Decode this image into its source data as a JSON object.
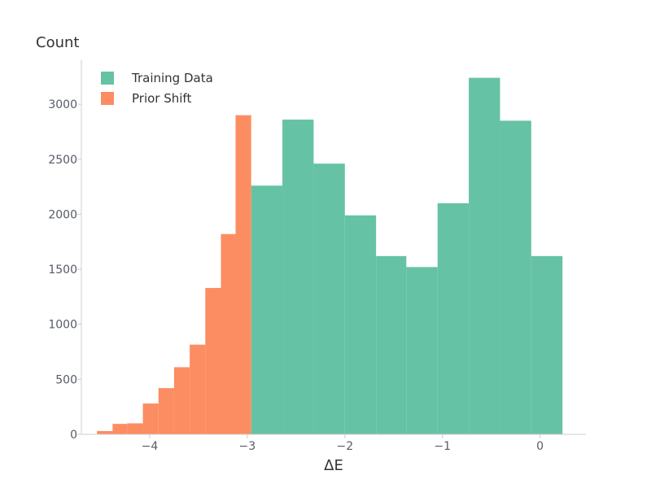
{
  "chart_data": {
    "type": "bar",
    "xlabel": "ΔE",
    "ylabel": "Count",
    "xlim": [
      -4.7,
      0.47
    ],
    "ylim": [
      0,
      3400
    ],
    "x_ticks": [
      -4,
      -3,
      -2,
      -1,
      0
    ],
    "x_tick_labels": [
      "−4",
      "−3",
      "−2",
      "−1",
      "0"
    ],
    "y_ticks": [
      0,
      500,
      1000,
      1500,
      2000,
      2500,
      3000
    ],
    "y_tick_labels": [
      "0",
      "500",
      "1000",
      "1500",
      "2000",
      "2500",
      "3000"
    ],
    "grid": false,
    "legend": {
      "position": "top-left"
    },
    "series": [
      {
        "name": "Training Data",
        "color": "#66c2a5",
        "bins": [
          {
            "x0": -2.96,
            "x1": -2.64,
            "value": 2260
          },
          {
            "x0": -2.64,
            "x1": -2.32,
            "value": 2860
          },
          {
            "x0": -2.32,
            "x1": -2.0,
            "value": 2460
          },
          {
            "x0": -2.0,
            "x1": -1.68,
            "value": 1990
          },
          {
            "x0": -1.68,
            "x1": -1.37,
            "value": 1620
          },
          {
            "x0": -1.37,
            "x1": -1.05,
            "value": 1520
          },
          {
            "x0": -1.05,
            "x1": -0.73,
            "value": 2100
          },
          {
            "x0": -0.73,
            "x1": -0.41,
            "value": 3240
          },
          {
            "x0": -0.41,
            "x1": -0.09,
            "value": 2850
          },
          {
            "x0": -0.09,
            "x1": 0.23,
            "value": 1620
          }
        ]
      },
      {
        "name": "Prior Shift",
        "color": "#fc8d62",
        "bins": [
          {
            "x0": -4.54,
            "x1": -4.38,
            "value": 30
          },
          {
            "x0": -4.38,
            "x1": -4.23,
            "value": 95
          },
          {
            "x0": -4.23,
            "x1": -4.07,
            "value": 100
          },
          {
            "x0": -4.07,
            "x1": -3.91,
            "value": 280
          },
          {
            "x0": -3.91,
            "x1": -3.75,
            "value": 420
          },
          {
            "x0": -3.75,
            "x1": -3.59,
            "value": 610
          },
          {
            "x0": -3.59,
            "x1": -3.43,
            "value": 815
          },
          {
            "x0": -3.43,
            "x1": -3.27,
            "value": 1330
          },
          {
            "x0": -3.27,
            "x1": -3.12,
            "value": 1820
          },
          {
            "x0": -3.12,
            "x1": -2.96,
            "value": 2900
          }
        ]
      }
    ]
  }
}
